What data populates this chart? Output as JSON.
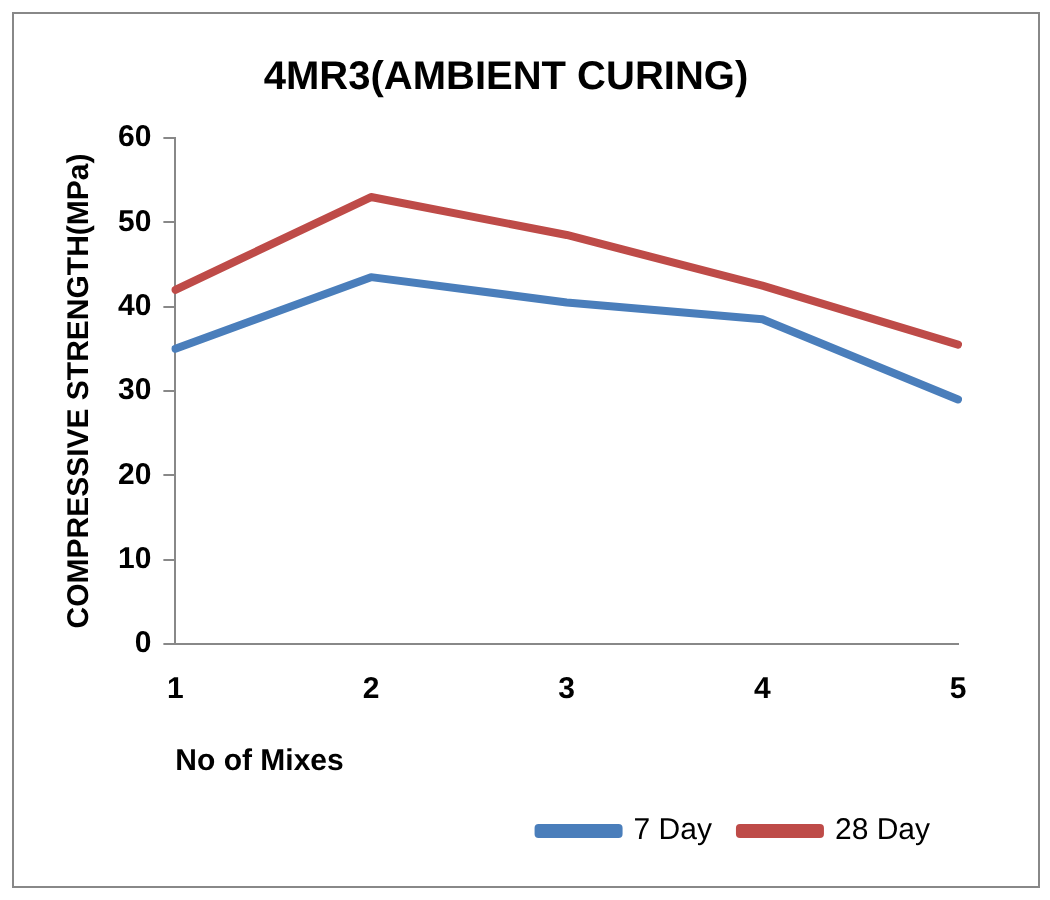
{
  "chart_data": {
    "type": "line",
    "title": "4MR3(AMBIENT CURING)",
    "xlabel": "No of Mixes",
    "ylabel": "COMPRESSIVE STRENGTH(MPa)",
    "categories": [
      "1",
      "2",
      "3",
      "4",
      "5"
    ],
    "series": [
      {
        "name": "7 Day",
        "color": "#4a7ebb",
        "values": [
          35,
          43.5,
          40.5,
          38.5,
          29
        ]
      },
      {
        "name": "28 Day",
        "color": "#be4b48",
        "values": [
          42,
          53,
          48.5,
          42.5,
          35.5
        ]
      }
    ],
    "ylim": [
      0,
      60
    ],
    "yticks": [
      0,
      10,
      20,
      30,
      40,
      50,
      60
    ],
    "grid": false,
    "legend": "bottom right",
    "marker": "none",
    "line_style": "solid"
  }
}
